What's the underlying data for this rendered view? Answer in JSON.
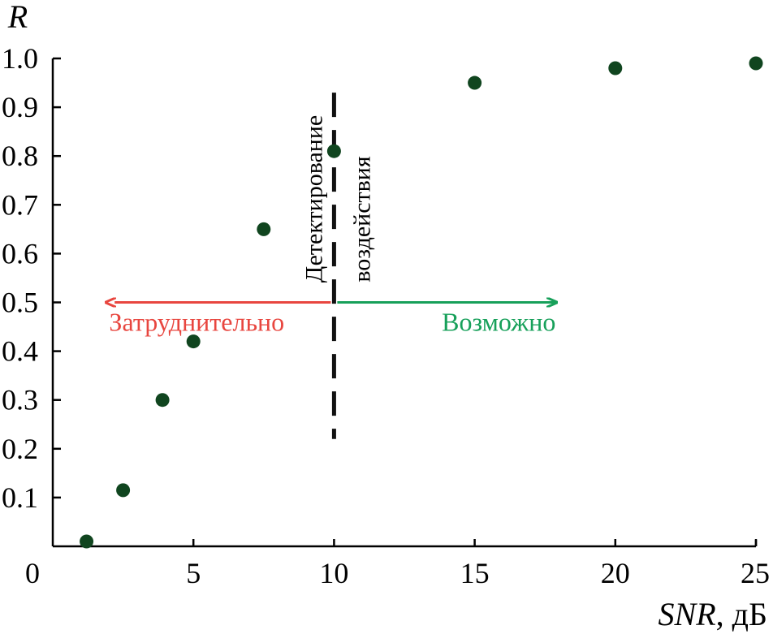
{
  "chart_data": {
    "type": "scatter",
    "ylabel": "R",
    "xlabel_italic": "SNR",
    "xlabel_unit": ", дБ",
    "xlim": [
      0,
      25
    ],
    "ylim": [
      0,
      1.0
    ],
    "x_ticks": [
      "0",
      "5",
      "10",
      "15",
      "20",
      "25"
    ],
    "y_ticks": [
      "0.1",
      "0.2",
      "0.3",
      "0.4",
      "0.5",
      "0.6",
      "0.7",
      "0.8",
      "0.9",
      "1.0"
    ],
    "grid": false,
    "points": [
      {
        "x": 1.2,
        "y": 0.01
      },
      {
        "x": 2.5,
        "y": 0.115
      },
      {
        "x": 3.9,
        "y": 0.3
      },
      {
        "x": 5.0,
        "y": 0.42
      },
      {
        "x": 7.5,
        "y": 0.65
      },
      {
        "x": 10.0,
        "y": 0.81
      },
      {
        "x": 15.0,
        "y": 0.95
      },
      {
        "x": 20.0,
        "y": 0.98
      },
      {
        "x": 25.0,
        "y": 0.99
      }
    ],
    "threshold": {
      "x": 10,
      "y_range": [
        0.22,
        0.93
      ],
      "label_line1": "Детектирование",
      "label_line2": "воздействия"
    },
    "arrow_left": {
      "label": "Затруднительно",
      "color": "#e8463f",
      "y": 0.5,
      "x_end": 2.2
    },
    "arrow_right": {
      "label": "Возможно",
      "color": "#17a05a",
      "y": 0.5,
      "x_end": 17.9
    },
    "point_color": "#10451f"
  }
}
